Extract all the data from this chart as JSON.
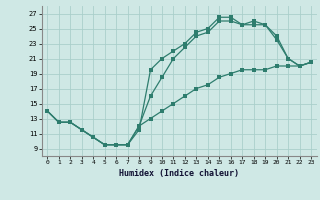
{
  "xlabel": "Humidex (Indice chaleur)",
  "bg_color": "#cfe8e5",
  "grid_color": "#aacfcb",
  "line_color": "#2e7d6e",
  "xlim": [
    -0.5,
    23.5
  ],
  "ylim": [
    8.0,
    28.0
  ],
  "xticks": [
    0,
    1,
    2,
    3,
    4,
    5,
    6,
    7,
    8,
    9,
    10,
    11,
    12,
    13,
    14,
    15,
    16,
    17,
    18,
    19,
    20,
    21,
    22,
    23
  ],
  "yticks": [
    9,
    11,
    13,
    15,
    17,
    19,
    21,
    23,
    25,
    27
  ],
  "line1_x": [
    0,
    1,
    2,
    3,
    4,
    5,
    6,
    7,
    8,
    9,
    10,
    11,
    12,
    13,
    14,
    15,
    16,
    17,
    18,
    19,
    20,
    21,
    22,
    23
  ],
  "line1_y": [
    14,
    12.5,
    12.5,
    11.5,
    10.5,
    9.5,
    9.5,
    9.5,
    12.0,
    13.0,
    14.0,
    15.0,
    16.0,
    17.0,
    17.5,
    18.5,
    19.0,
    19.5,
    19.5,
    19.5,
    20.0,
    20.0,
    20.0,
    20.5
  ],
  "line2_x": [
    0,
    1,
    2,
    3,
    4,
    5,
    6,
    7,
    8,
    9,
    10,
    11,
    12,
    13,
    14,
    15,
    16,
    17,
    18,
    19,
    20,
    21,
    22,
    23
  ],
  "line2_y": [
    14,
    12.5,
    12.5,
    11.5,
    10.5,
    9.5,
    9.5,
    9.5,
    12.0,
    16.0,
    18.5,
    21.0,
    22.5,
    24.0,
    24.5,
    26.0,
    26.0,
    25.5,
    25.5,
    25.5,
    23.5,
    21.0,
    20.0,
    20.5
  ],
  "line3_x": [
    0,
    1,
    2,
    3,
    4,
    5,
    6,
    7,
    8,
    9,
    10,
    11,
    12,
    13,
    14,
    15,
    16,
    17,
    18,
    19,
    20,
    21,
    22,
    23
  ],
  "line3_y": [
    14,
    12.5,
    12.5,
    11.5,
    10.5,
    9.5,
    9.5,
    9.5,
    11.5,
    19.5,
    21.0,
    22.0,
    23.0,
    24.5,
    25.0,
    26.5,
    26.5,
    25.5,
    26.0,
    25.5,
    24.0,
    21.0,
    20.0,
    20.5
  ]
}
